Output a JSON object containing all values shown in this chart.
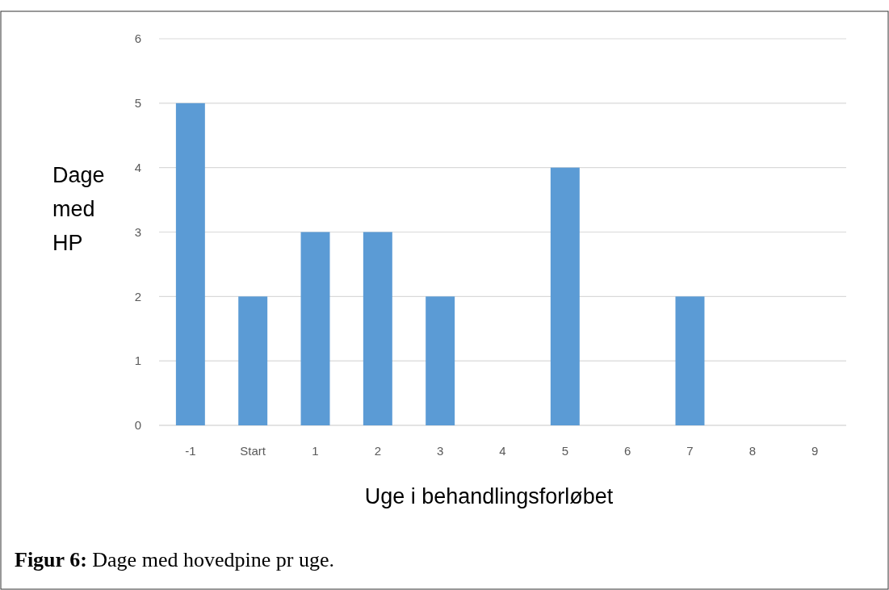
{
  "chart_data": {
    "type": "bar",
    "xlabel": "Uge i behandlingsforløbet",
    "ylabel": "Dage med HP",
    "categories": [
      "-1",
      "Start",
      "1",
      "2",
      "3",
      "4",
      "5",
      "6",
      "7",
      "8",
      "9"
    ],
    "values": [
      5,
      2,
      3,
      3,
      2,
      0,
      4,
      0,
      2,
      0,
      0
    ],
    "color": "#5b9bd5",
    "ylim": [
      0,
      6
    ],
    "yticks": [
      0,
      1,
      2,
      3,
      4,
      5,
      6
    ],
    "grid": "y",
    "annotations": [
      "Figur 6: Dage med hovedpine pr uge."
    ]
  }
}
